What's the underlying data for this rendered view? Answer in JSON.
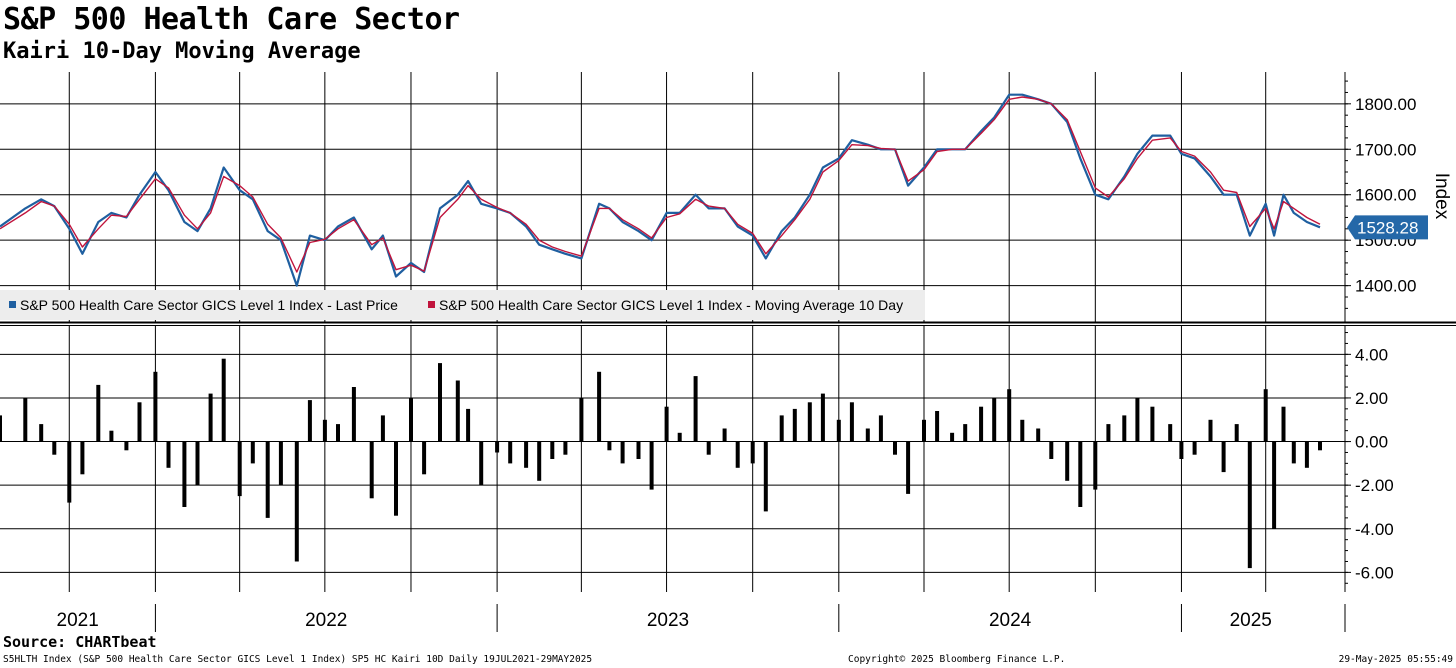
{
  "header": {
    "title": "S&P 500 Health Care Sector",
    "subtitle": "Kairi 10-Day Moving Average"
  },
  "footer": {
    "source": "Source: CHARTbeat",
    "left_note": "S5HLTH Index (S&P 500 Health Care Sector GICS Level 1 Index) SP5 HC Kairi 10D  Daily 19JUL2021-29MAY2025",
    "copyright": "Copyright© 2025 Bloomberg Finance L.P.",
    "timestamp": "29-May-2025 05:55:49"
  },
  "colors": {
    "price": "#1f5fa0",
    "ma": "#c0143c",
    "histogram": "#000000",
    "grid": "#000000",
    "last_badge": "#2468a8"
  },
  "chart_data": [
    {
      "type": "line",
      "ylabel": "Index",
      "ylim": [
        1320,
        1870
      ],
      "yticks": [
        1400,
        1500,
        1600,
        1700,
        1800
      ],
      "ytick_labels": [
        "1400.00",
        "1500.00",
        "1600.00",
        "1700.00",
        "1800.00"
      ],
      "last_value_label": "1528.28",
      "grid": true,
      "legend_position": "bottom-left",
      "series": [
        {
          "name": "S&P 500 Health Care Sector GICS Level 1 Index - Last Price",
          "color": "#1f5fa0",
          "x": [
            "2021-07-19",
            "2021-08-15",
            "2021-09-01",
            "2021-09-15",
            "2021-10-01",
            "2021-10-15",
            "2021-11-01",
            "2021-11-15",
            "2021-12-01",
            "2021-12-15",
            "2022-01-01",
            "2022-01-15",
            "2022-02-01",
            "2022-02-15",
            "2022-03-01",
            "2022-03-15",
            "2022-04-01",
            "2022-04-15",
            "2022-05-01",
            "2022-05-15",
            "2022-06-01",
            "2022-06-15",
            "2022-07-01",
            "2022-07-15",
            "2022-08-01",
            "2022-08-20",
            "2022-09-01",
            "2022-09-15",
            "2022-10-01",
            "2022-10-15",
            "2022-11-01",
            "2022-11-20",
            "2022-12-01",
            "2022-12-15",
            "2023-01-01",
            "2023-01-15",
            "2023-02-01",
            "2023-02-15",
            "2023-03-01",
            "2023-03-15",
            "2023-04-01",
            "2023-04-20",
            "2023-05-01",
            "2023-05-15",
            "2023-06-01",
            "2023-06-15",
            "2023-07-01",
            "2023-07-15",
            "2023-08-01",
            "2023-08-15",
            "2023-09-01",
            "2023-09-15",
            "2023-10-01",
            "2023-10-15",
            "2023-11-01",
            "2023-11-15",
            "2023-12-01",
            "2023-12-15",
            "2024-01-01",
            "2024-01-15",
            "2024-02-01",
            "2024-02-15",
            "2024-03-01",
            "2024-03-15",
            "2024-04-01",
            "2024-04-15",
            "2024-05-01",
            "2024-05-15",
            "2024-06-01",
            "2024-06-15",
            "2024-07-01",
            "2024-07-15",
            "2024-08-01",
            "2024-08-15",
            "2024-09-01",
            "2024-09-15",
            "2024-10-01",
            "2024-10-15",
            "2024-11-01",
            "2024-11-15",
            "2024-12-01",
            "2024-12-20",
            "2025-01-01",
            "2025-01-15",
            "2025-02-01",
            "2025-02-15",
            "2025-03-01",
            "2025-03-15",
            "2025-04-01",
            "2025-04-10",
            "2025-04-20",
            "2025-05-01",
            "2025-05-15",
            "2025-05-29"
          ],
          "values": [
            1530,
            1570,
            1590,
            1575,
            1525,
            1470,
            1540,
            1560,
            1550,
            1600,
            1650,
            1610,
            1540,
            1520,
            1570,
            1660,
            1610,
            1590,
            1520,
            1500,
            1400,
            1510,
            1500,
            1530,
            1550,
            1480,
            1510,
            1420,
            1450,
            1430,
            1570,
            1600,
            1630,
            1580,
            1570,
            1560,
            1530,
            1490,
            1480,
            1470,
            1460,
            1580,
            1570,
            1540,
            1520,
            1500,
            1560,
            1560,
            1600,
            1570,
            1570,
            1530,
            1510,
            1460,
            1520,
            1550,
            1600,
            1660,
            1680,
            1720,
            1710,
            1700,
            1700,
            1620,
            1660,
            1700,
            1700,
            1700,
            1740,
            1770,
            1820,
            1820,
            1810,
            1800,
            1760,
            1680,
            1600,
            1590,
            1640,
            1690,
            1730,
            1730,
            1690,
            1680,
            1640,
            1600,
            1600,
            1510,
            1580,
            1510,
            1600,
            1560,
            1540,
            1528.28
          ]
        },
        {
          "name": "S&P 500 Health Care Sector GICS Level 1 Index - Moving Average 10 Day",
          "color": "#c0143c",
          "x": [
            "2021-07-19",
            "2021-08-15",
            "2021-09-01",
            "2021-09-15",
            "2021-10-01",
            "2021-10-15",
            "2021-11-01",
            "2021-11-15",
            "2021-12-01",
            "2021-12-15",
            "2022-01-01",
            "2022-01-15",
            "2022-02-01",
            "2022-02-15",
            "2022-03-01",
            "2022-03-15",
            "2022-04-01",
            "2022-04-15",
            "2022-05-01",
            "2022-05-15",
            "2022-06-01",
            "2022-06-15",
            "2022-07-01",
            "2022-07-15",
            "2022-08-01",
            "2022-08-20",
            "2022-09-01",
            "2022-09-15",
            "2022-10-01",
            "2022-10-15",
            "2022-11-01",
            "2022-11-20",
            "2022-12-01",
            "2022-12-15",
            "2023-01-01",
            "2023-01-15",
            "2023-02-01",
            "2023-02-15",
            "2023-03-01",
            "2023-03-15",
            "2023-04-01",
            "2023-04-20",
            "2023-05-01",
            "2023-05-15",
            "2023-06-01",
            "2023-06-15",
            "2023-07-01",
            "2023-07-15",
            "2023-08-01",
            "2023-08-15",
            "2023-09-01",
            "2023-09-15",
            "2023-10-01",
            "2023-10-15",
            "2023-11-01",
            "2023-11-15",
            "2023-12-01",
            "2023-12-15",
            "2024-01-01",
            "2024-01-15",
            "2024-02-01",
            "2024-02-15",
            "2024-03-01",
            "2024-03-15",
            "2024-04-01",
            "2024-04-15",
            "2024-05-01",
            "2024-05-15",
            "2024-06-01",
            "2024-06-15",
            "2024-07-01",
            "2024-07-15",
            "2024-08-01",
            "2024-08-15",
            "2024-09-01",
            "2024-09-15",
            "2024-10-01",
            "2024-10-15",
            "2024-11-01",
            "2024-11-15",
            "2024-12-01",
            "2024-12-20",
            "2025-01-01",
            "2025-01-15",
            "2025-02-01",
            "2025-02-15",
            "2025-03-01",
            "2025-03-15",
            "2025-04-01",
            "2025-04-10",
            "2025-04-20",
            "2025-05-01",
            "2025-05-15",
            "2025-05-29"
          ],
          "values": [
            1525,
            1560,
            1585,
            1575,
            1535,
            1485,
            1525,
            1555,
            1552,
            1590,
            1635,
            1615,
            1555,
            1525,
            1560,
            1640,
            1620,
            1595,
            1535,
            1505,
            1430,
            1495,
            1502,
            1525,
            1545,
            1490,
            1505,
            1435,
            1445,
            1432,
            1550,
            1590,
            1620,
            1590,
            1572,
            1560,
            1535,
            1500,
            1485,
            1475,
            1465,
            1570,
            1570,
            1545,
            1525,
            1505,
            1550,
            1558,
            1590,
            1575,
            1570,
            1535,
            1515,
            1470,
            1510,
            1545,
            1590,
            1650,
            1675,
            1710,
            1708,
            1702,
            1700,
            1630,
            1655,
            1695,
            1700,
            1700,
            1735,
            1765,
            1810,
            1815,
            1810,
            1800,
            1765,
            1695,
            1615,
            1595,
            1635,
            1680,
            1720,
            1725,
            1695,
            1685,
            1650,
            1610,
            1605,
            1530,
            1570,
            1525,
            1585,
            1570,
            1550,
            1535
          ]
        }
      ]
    },
    {
      "type": "bar",
      "ylim": [
        -6.9,
        5.3
      ],
      "yticks": [
        -6,
        -4,
        -2,
        0,
        2,
        4
      ],
      "ytick_labels": [
        "-6.00",
        "-4.00",
        "-2.00",
        "0.00",
        "2.00",
        "4.00"
      ],
      "grid": true,
      "series": [
        {
          "name": "SP5 HC Kairi 10D",
          "color": "#000000",
          "x": [
            "2021-07-19",
            "2021-08-15",
            "2021-09-01",
            "2021-09-15",
            "2021-10-01",
            "2021-10-15",
            "2021-11-01",
            "2021-11-15",
            "2021-12-01",
            "2021-12-15",
            "2022-01-01",
            "2022-01-15",
            "2022-02-01",
            "2022-02-15",
            "2022-03-01",
            "2022-03-15",
            "2022-04-01",
            "2022-04-15",
            "2022-05-01",
            "2022-05-15",
            "2022-06-01",
            "2022-06-15",
            "2022-07-01",
            "2022-07-15",
            "2022-08-01",
            "2022-08-20",
            "2022-09-01",
            "2022-09-15",
            "2022-10-01",
            "2022-10-15",
            "2022-11-01",
            "2022-11-20",
            "2022-12-01",
            "2022-12-15",
            "2023-01-01",
            "2023-01-15",
            "2023-02-01",
            "2023-02-15",
            "2023-03-01",
            "2023-03-15",
            "2023-04-01",
            "2023-04-20",
            "2023-05-01",
            "2023-05-15",
            "2023-06-01",
            "2023-06-15",
            "2023-07-01",
            "2023-07-15",
            "2023-08-01",
            "2023-08-15",
            "2023-09-01",
            "2023-09-15",
            "2023-10-01",
            "2023-10-15",
            "2023-11-01",
            "2023-11-15",
            "2023-12-01",
            "2023-12-15",
            "2024-01-01",
            "2024-01-15",
            "2024-02-01",
            "2024-02-15",
            "2024-03-01",
            "2024-03-15",
            "2024-04-01",
            "2024-04-15",
            "2024-05-01",
            "2024-05-15",
            "2024-06-01",
            "2024-06-15",
            "2024-07-01",
            "2024-07-15",
            "2024-08-01",
            "2024-08-15",
            "2024-09-01",
            "2024-09-15",
            "2024-10-01",
            "2024-10-15",
            "2024-11-01",
            "2024-11-15",
            "2024-12-01",
            "2024-12-20",
            "2025-01-01",
            "2025-01-15",
            "2025-02-01",
            "2025-02-15",
            "2025-03-01",
            "2025-03-15",
            "2025-04-01",
            "2025-04-10",
            "2025-04-20",
            "2025-05-01",
            "2025-05-15",
            "2025-05-29"
          ],
          "values": [
            1.2,
            2.0,
            0.8,
            -0.6,
            -2.8,
            -1.5,
            2.6,
            0.5,
            -0.4,
            1.8,
            3.2,
            -1.2,
            -3.0,
            -2.0,
            2.2,
            3.8,
            -2.5,
            -1.0,
            -3.5,
            -2.0,
            -5.5,
            1.9,
            1.0,
            0.8,
            2.5,
            -2.6,
            1.2,
            -3.4,
            2.0,
            -1.5,
            3.6,
            2.8,
            1.5,
            -2.0,
            -0.5,
            -1.0,
            -1.2,
            -1.8,
            -0.8,
            -0.6,
            2.0,
            3.2,
            -0.4,
            -1.0,
            -0.8,
            -2.2,
            1.6,
            0.4,
            3.0,
            -0.6,
            0.6,
            -1.2,
            -1.0,
            -3.2,
            1.2,
            1.5,
            1.8,
            2.2,
            1.0,
            1.8,
            0.6,
            1.2,
            -0.6,
            -2.4,
            1.0,
            1.4,
            0.4,
            0.8,
            1.6,
            2.0,
            2.4,
            1.0,
            0.6,
            -0.8,
            -1.8,
            -3.0,
            -2.2,
            0.8,
            1.2,
            2.0,
            1.6,
            0.8,
            -0.8,
            -0.6,
            1.0,
            -1.4,
            0.8,
            -5.8,
            2.4,
            -4.0,
            1.6,
            -1.0,
            -1.2,
            -0.4
          ]
        }
      ]
    }
  ],
  "x_axis": {
    "years": [
      "2021",
      "2022",
      "2023",
      "2024",
      "2025"
    ]
  }
}
